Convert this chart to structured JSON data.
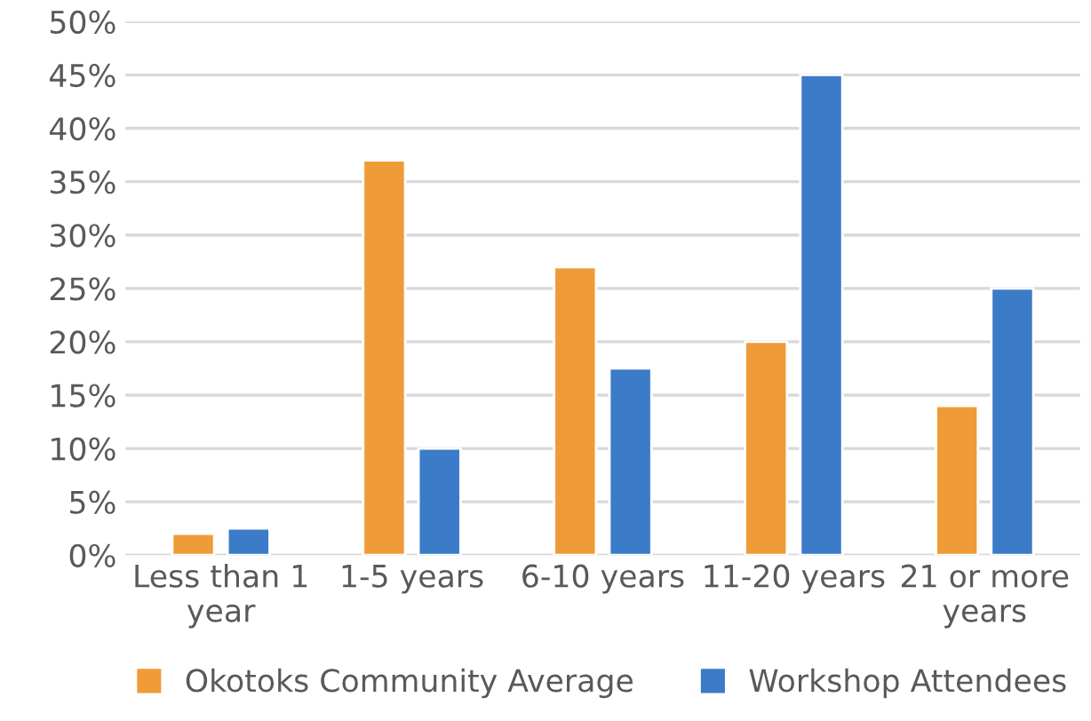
{
  "chart_data": {
    "type": "bar",
    "categories": [
      "Less than 1 year",
      "1-5 years",
      "6-10 years",
      "11-20 years",
      "21 or more years"
    ],
    "series": [
      {
        "name": "Okotoks Community Average",
        "color": "#ef9b38",
        "values": [
          2,
          37,
          27,
          20,
          14
        ]
      },
      {
        "name": "Workshop Attendees",
        "color": "#3b7bc8",
        "values": [
          2.5,
          10,
          17.5,
          45,
          25
        ]
      }
    ],
    "ylim": [
      0,
      50
    ],
    "yticks": [
      {
        "value": 0,
        "label": "0%"
      },
      {
        "value": 5,
        "label": "5%"
      },
      {
        "value": 10,
        "label": "10%"
      },
      {
        "value": 15,
        "label": "15%"
      },
      {
        "value": 20,
        "label": "20%"
      },
      {
        "value": 25,
        "label": "25%"
      },
      {
        "value": 30,
        "label": "30%"
      },
      {
        "value": 35,
        "label": "35%"
      },
      {
        "value": 40,
        "label": "40%"
      },
      {
        "value": 45,
        "label": "45%"
      },
      {
        "value": 50,
        "label": "50%"
      }
    ],
    "grid": "y",
    "legend": "bottom"
  }
}
